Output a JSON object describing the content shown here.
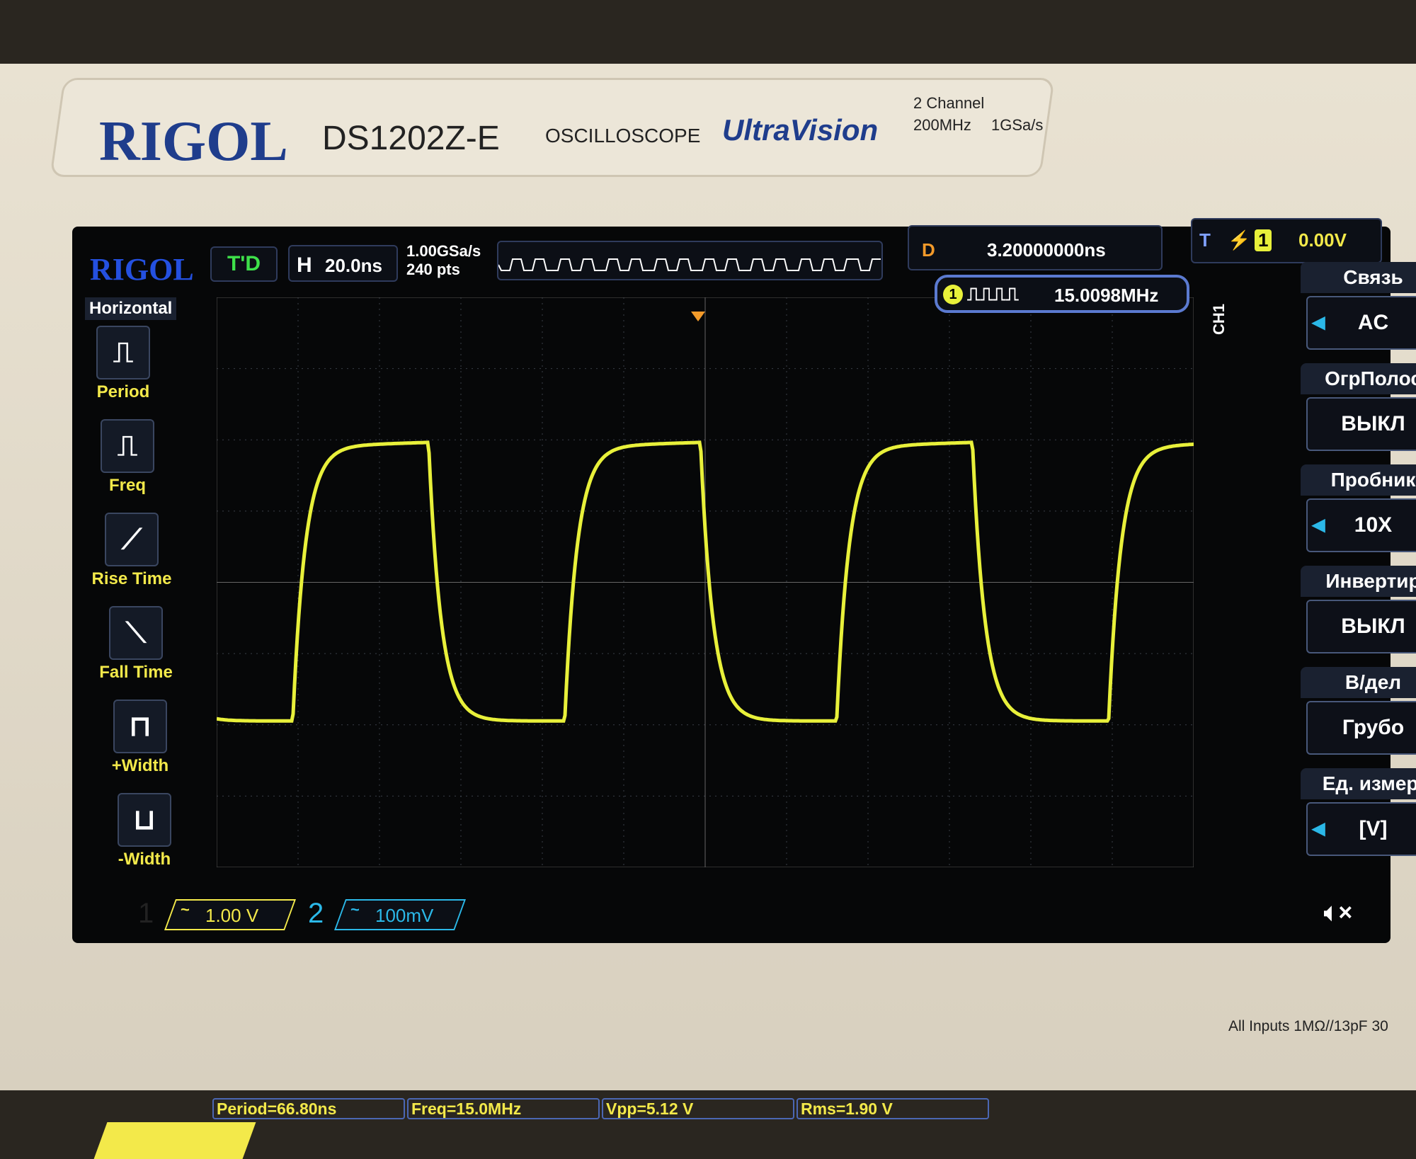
{
  "device": {
    "brand": "RIGOL",
    "model": "DS1202Z-E",
    "type": "OSCILLOSCOPE",
    "series": "UltraVision",
    "channels": "2 Channel",
    "bandwidth": "200MHz",
    "sample_rate": "1GSa/s",
    "inputs_note": "All Inputs 1MΩ//13pF 30"
  },
  "status": {
    "logo": "RIGOL",
    "mode": "T'D",
    "timebase_label": "H",
    "timebase": "20.0ns",
    "sa_rate": "1.00GSa/s",
    "mem_depth": "240 pts",
    "delay_label": "D",
    "delay": "3.20000000ns",
    "trigger_label": "T",
    "trigger_source": "1",
    "trigger_level": "0.00V",
    "freq_counter": "15.0098MHz"
  },
  "left_menu": {
    "title": "Horizontal",
    "items": [
      {
        "label": "Period",
        "icon": "period-icon"
      },
      {
        "label": "Freq",
        "icon": "freq-icon"
      },
      {
        "label": "Rise Time",
        "icon": "rise-time-icon"
      },
      {
        "label": "Fall Time",
        "icon": "fall-time-icon"
      },
      {
        "label": "+Width",
        "icon": "pos-width-icon"
      },
      {
        "label": "-Width",
        "icon": "neg-width-icon"
      }
    ]
  },
  "right_menu": {
    "channel": "CH1",
    "items": [
      {
        "title": "Связь",
        "value": "AC"
      },
      {
        "title": "ОгрПолос",
        "value": "ВЫКЛ"
      },
      {
        "title": "Пробник",
        "value": "10X"
      },
      {
        "title": "Инвертир",
        "value": "ВЫКЛ"
      },
      {
        "title": "В/дел",
        "value": "Грубо"
      },
      {
        "title": "Ед. измер.",
        "value": "[V]"
      }
    ]
  },
  "measurements": [
    "Period=66.80ns",
    "Freq=15.0MHz",
    "Vpp=5.12 V",
    "Rms=1.90 V"
  ],
  "channels": [
    {
      "num": "1",
      "coupling": "~",
      "scale": "1.00 V",
      "color": "#f3e94a"
    },
    {
      "num": "2",
      "coupling": "~",
      "scale": "100mV",
      "color": "#2bb8e8"
    }
  ],
  "colors": {
    "ch1": "#e8f03a",
    "ch2": "#2bb8e8",
    "trigger": "#f39a2a",
    "grid": "#3a3f48"
  },
  "waveform": {
    "type": "square",
    "period_ns": 66.8,
    "vpp_v": 5.12,
    "timebase_ns_per_div": 20,
    "volts_per_div": 1.0
  }
}
